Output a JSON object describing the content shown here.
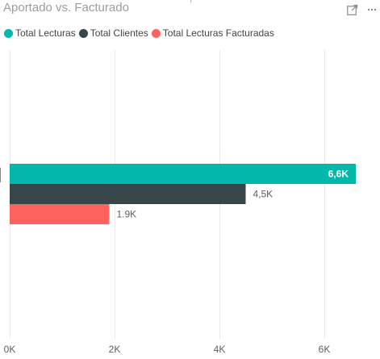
{
  "header": {
    "title": "Aportado vs. Facturado",
    "focus_icon": "focus-mode-icon",
    "more_icon": "more-options-icon"
  },
  "colors": {
    "Total Lecturas": "#01b8aa",
    "Total Clientes": "#374649",
    "Total Lecturas Facturadas": "#fd625e",
    "gridline": "#e8e8e8",
    "label_dark": "#605e5c",
    "label_light": "#ffffff"
  },
  "chart_data": {
    "type": "bar",
    "orientation": "horizontal",
    "title": "Aportado vs. Facturado",
    "categories": [
      ""
    ],
    "series": [
      {
        "name": "Total Lecturas",
        "values": [
          6600
        ],
        "data_labels": [
          "6,6K"
        ]
      },
      {
        "name": "Total Clientes",
        "values": [
          4500
        ],
        "data_labels": [
          "4,5K"
        ]
      },
      {
        "name": "Total Lecturas Facturadas",
        "values": [
          1900
        ],
        "data_labels": [
          "1.9K"
        ]
      }
    ],
    "xlim": [
      0,
      6800
    ],
    "x_ticks": [
      0,
      2000,
      4000,
      6000
    ],
    "x_tick_labels": [
      "0K",
      "2K",
      "4K",
      "6K"
    ],
    "grid": true,
    "legend_position": "top-left"
  }
}
